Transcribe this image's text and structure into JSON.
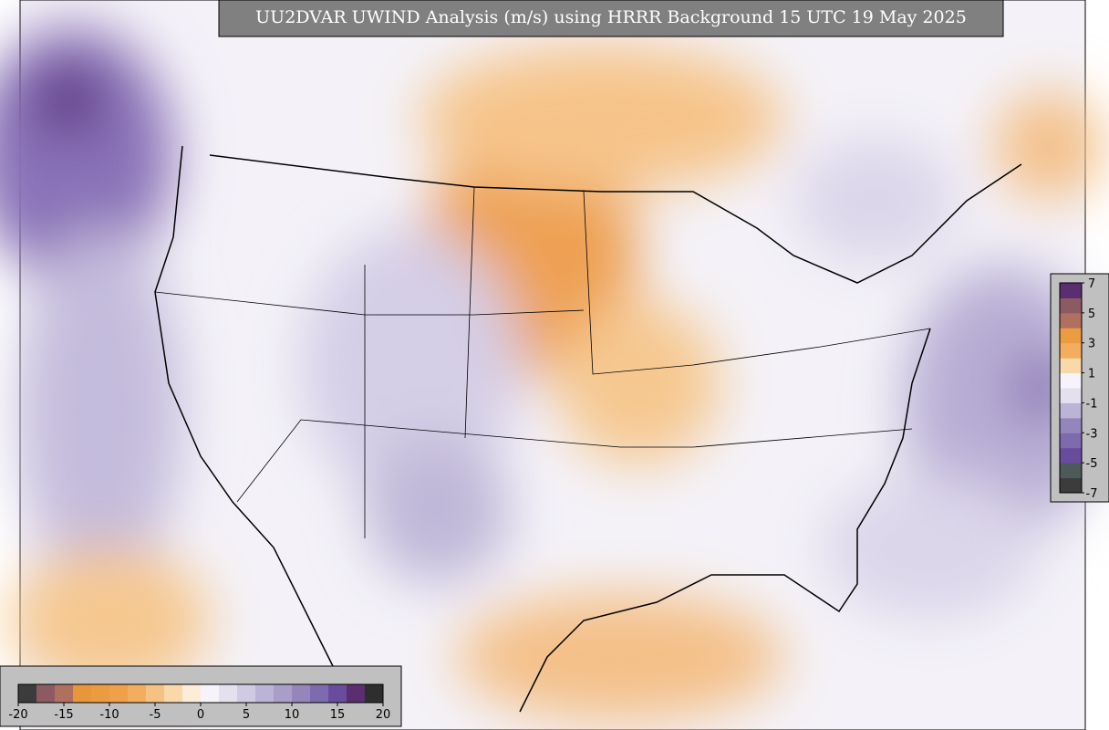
{
  "title": "UU2DVAR UWIND Analysis (m/s) using HRRR Background 15 UTC 19 May 2025",
  "colorbars": [
    {
      "orientation": "horizontal",
      "range": [
        -20,
        20
      ],
      "ticks": [
        -20,
        -15,
        -10,
        -5,
        0,
        5,
        10,
        15,
        20
      ],
      "colors": [
        "#3c3c3c",
        "#8c5a62",
        "#b07060",
        "#e8963c",
        "#ec9c40",
        "#f0a04a",
        "#f2ae5e",
        "#f6c284",
        "#f9d8aa",
        "#fcecd8",
        "#f6f4fa",
        "#e4e0ee",
        "#d0cae2",
        "#bcb4d6",
        "#a89ec8",
        "#9486bb",
        "#7e6aae",
        "#6a4c9e",
        "#5a2e70",
        "#2e2e2e"
      ]
    },
    {
      "orientation": "vertical",
      "range": [
        -7,
        7
      ],
      "ticks": [
        7,
        5,
        3,
        1,
        -1,
        -3,
        -5,
        -7
      ],
      "colors": [
        "#3c3c3c",
        "#4c5a5a",
        "#6a4c9e",
        "#7e6aae",
        "#9486bb",
        "#bcb4d6",
        "#e4e0ee",
        "#f6f4fa",
        "#f9d8aa",
        "#f2ae5e",
        "#ec9c40",
        "#b07060",
        "#8c5a62",
        "#5a2e70"
      ]
    }
  ]
}
